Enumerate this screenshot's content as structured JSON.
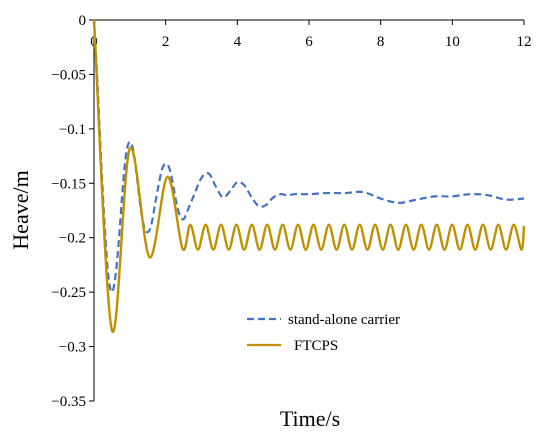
{
  "chart_data": {
    "type": "line",
    "title": "",
    "xlabel": "Time/s",
    "ylabel": "Heave/m",
    "xlim": [
      0,
      12
    ],
    "ylim": [
      -0.35,
      0
    ],
    "x_ticks": [
      0,
      2,
      4,
      6,
      8,
      10,
      12
    ],
    "y_ticks": [
      0,
      -0.05,
      -0.1,
      -0.15,
      -0.2,
      -0.25,
      -0.3,
      -0.35
    ],
    "x_tick_labels": [
      "0",
      "2",
      "4",
      "6",
      "8",
      "10",
      "12"
    ],
    "y_tick_labels": [
      "0",
      "−0.05",
      "−0.1",
      "−0.15",
      "−0.2",
      "−0.25",
      "−0.3",
      "−0.35"
    ],
    "x_axis_at_y": 0,
    "grid": false,
    "legend": {
      "position": "bottom-right"
    },
    "series": [
      {
        "name": "stand-alone carrier",
        "color": "#4472C4",
        "dash": "dashed",
        "x": [
          0,
          0.1,
          0.2,
          0.3,
          0.4,
          0.5,
          0.6,
          0.7,
          0.8,
          0.9,
          1.0,
          1.1,
          1.2,
          1.3,
          1.4,
          1.5,
          1.6,
          1.7,
          1.8,
          1.9,
          2.0,
          2.1,
          2.2,
          2.3,
          2.4,
          2.5,
          2.6,
          2.8,
          3.0,
          3.2,
          3.4,
          3.6,
          3.8,
          4.0,
          4.2,
          4.4,
          4.6,
          4.8,
          5.0,
          5.2,
          5.4,
          5.6,
          6.0,
          6.5,
          7.0,
          7.5,
          8.0,
          8.5,
          9.0,
          9.5,
          10.0,
          10.5,
          11.0,
          11.5,
          12.0
        ],
        "y": [
          0,
          -0.06,
          -0.13,
          -0.19,
          -0.235,
          -0.25,
          -0.235,
          -0.2,
          -0.155,
          -0.122,
          -0.112,
          -0.12,
          -0.145,
          -0.172,
          -0.19,
          -0.195,
          -0.188,
          -0.17,
          -0.152,
          -0.137,
          -0.132,
          -0.136,
          -0.15,
          -0.168,
          -0.18,
          -0.183,
          -0.176,
          -0.16,
          -0.145,
          -0.141,
          -0.153,
          -0.163,
          -0.157,
          -0.149,
          -0.152,
          -0.163,
          -0.171,
          -0.17,
          -0.163,
          -0.16,
          -0.161,
          -0.16,
          -0.16,
          -0.159,
          -0.159,
          -0.158,
          -0.164,
          -0.168,
          -0.165,
          -0.162,
          -0.162,
          -0.16,
          -0.161,
          -0.165,
          -0.164
        ]
      },
      {
        "name": "FTCPS",
        "color": "#BF9000",
        "dash": "solid",
        "model": {
          "points": [
            [
              0,
              0
            ],
            [
              0.5,
              -0.285
            ],
            [
              1.0,
              -0.118
            ],
            [
              1.55,
              -0.218
            ],
            [
              2.05,
              -0.144
            ],
            [
              2.47,
              -0.21
            ]
          ],
          "steady_center": -0.1995,
          "steady_amplitude": 0.0115,
          "steady_period": 0.43,
          "x_end": 12
        }
      }
    ]
  }
}
